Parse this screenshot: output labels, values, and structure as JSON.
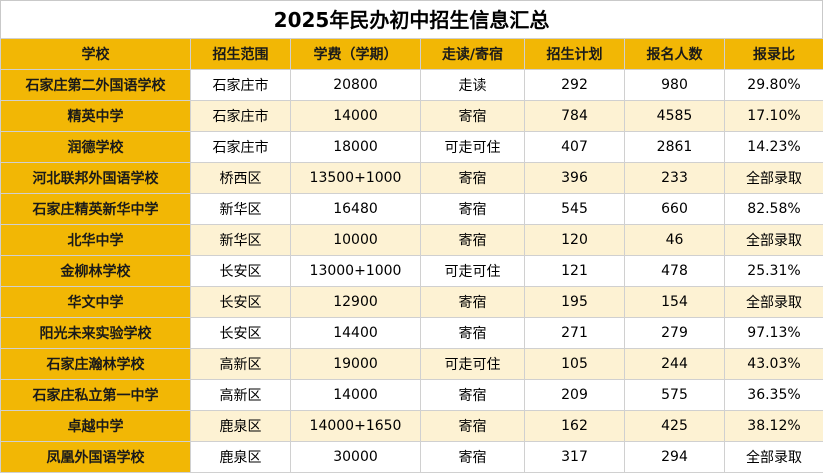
{
  "title": "2025年民办初中招生信息汇总",
  "colors": {
    "header_bg": "#f2b705",
    "row_alt_bg": "#fdf2d3",
    "row_bg": "#ffffff"
  },
  "table": {
    "headers": [
      "学校",
      "招生范围",
      "学费（学期）",
      "走读/寄宿",
      "招生计划",
      "报名人数",
      "报录比"
    ],
    "rows": [
      [
        "石家庄第二外国语学校",
        "石家庄市",
        "20800",
        "走读",
        "292",
        "980",
        "29.80%"
      ],
      [
        "精英中学",
        "石家庄市",
        "14000",
        "寄宿",
        "784",
        "4585",
        "17.10%"
      ],
      [
        "润德学校",
        "石家庄市",
        "18000",
        "可走可住",
        "407",
        "2861",
        "14.23%"
      ],
      [
        "河北联邦外国语学校",
        "桥西区",
        "13500+1000",
        "寄宿",
        "396",
        "233",
        "全部录取"
      ],
      [
        "石家庄精英新华中学",
        "新华区",
        "16480",
        "寄宿",
        "545",
        "660",
        "82.58%"
      ],
      [
        "北华中学",
        "新华区",
        "10000",
        "寄宿",
        "120",
        "46",
        "全部录取"
      ],
      [
        "金柳林学校",
        "长安区",
        "13000+1000",
        "可走可住",
        "121",
        "478",
        "25.31%"
      ],
      [
        "华文中学",
        "长安区",
        "12900",
        "寄宿",
        "195",
        "154",
        "全部录取"
      ],
      [
        "阳光未来实验学校",
        "长安区",
        "14400",
        "寄宿",
        "271",
        "279",
        "97.13%"
      ],
      [
        "石家庄瀚林学校",
        "高新区",
        "19000",
        "可走可住",
        "105",
        "244",
        "43.03%"
      ],
      [
        "石家庄私立第一中学",
        "高新区",
        "14000",
        "寄宿",
        "209",
        "575",
        "36.35%"
      ],
      [
        "卓越中学",
        "鹿泉区",
        "14000+1650",
        "寄宿",
        "162",
        "425",
        "38.12%"
      ],
      [
        "凤凰外国语学校",
        "鹿泉区",
        "30000",
        "寄宿",
        "317",
        "294",
        "全部录取"
      ]
    ]
  }
}
